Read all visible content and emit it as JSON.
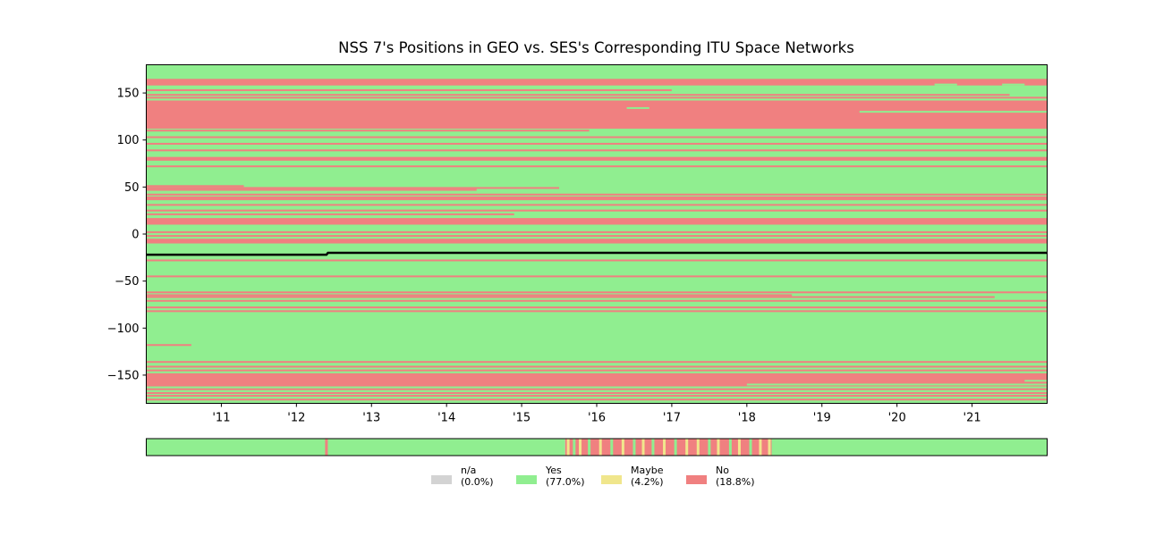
{
  "chart_data": {
    "type": "heatmap",
    "title": "NSS 7's Positions in GEO vs. SES's Corresponding ITU Space Networks",
    "xlabel": "",
    "ylabel": "",
    "xlim": [
      2010.0,
      2022.0
    ],
    "ylim": [
      -180,
      180
    ],
    "x_tick_values": [
      2011,
      2012,
      2013,
      2014,
      2015,
      2016,
      2017,
      2018,
      2019,
      2020,
      2021
    ],
    "x_tick_labels": [
      "'11",
      "'12",
      "'13",
      "'14",
      "'15",
      "'16",
      "'17",
      "'18",
      "'19",
      "'20",
      "'21"
    ],
    "y_tick_values": [
      150,
      100,
      50,
      0,
      -50,
      -100,
      -150
    ],
    "y_tick_labels": [
      "150",
      "100",
      "50",
      "0",
      "−50",
      "−100",
      "−150"
    ],
    "colors": {
      "na": "#d3d3d3",
      "yes": "#90ee90",
      "maybe": "#f0e68c",
      "no": "#f08080",
      "trace": "#000000"
    },
    "background_status": "yes",
    "no_bands": [
      {
        "lon_from": 158,
        "lon_to": 165
      },
      {
        "lon_from": 112,
        "lon_to": 142
      },
      {
        "lon_from": 78,
        "lon_to": 82
      },
      {
        "lon_from": 36,
        "lon_to": 40
      },
      {
        "lon_from": 10,
        "lon_to": 17
      },
      {
        "lon_from": -10,
        "lon_to": -5
      },
      {
        "lon_from": -162,
        "lon_to": -148
      }
    ],
    "no_lines": [
      {
        "lon": 153,
        "x_from": 2010.0,
        "x_to": 2017.0
      },
      {
        "lon": 148,
        "x_from": 2010.0,
        "x_to": 2021.5
      },
      {
        "lon": 145,
        "x_from": 2010.0,
        "x_to": 2022.0
      },
      {
        "lon": 136,
        "x_from": 2018.8,
        "x_to": 2022.0
      },
      {
        "lon": 110,
        "x_from": 2010.0,
        "x_to": 2015.9
      },
      {
        "lon": 103,
        "x_from": 2010.0,
        "x_to": 2022.0
      },
      {
        "lon": 96,
        "x_from": 2010.0,
        "x_to": 2022.0
      },
      {
        "lon": 89,
        "x_from": 2010.0,
        "x_to": 2022.0
      },
      {
        "lon": 72,
        "x_from": 2010.0,
        "x_to": 2022.0
      },
      {
        "lon": 51,
        "x_from": 2010.0,
        "x_to": 2011.3
      },
      {
        "lon": 49,
        "x_from": 2010.0,
        "x_to": 2015.5
      },
      {
        "lon": 47,
        "x_from": 2010.0,
        "x_to": 2014.4
      },
      {
        "lon": 42,
        "x_from": 2010.0,
        "x_to": 2022.0
      },
      {
        "lon": 31,
        "x_from": 2010.0,
        "x_to": 2022.0
      },
      {
        "lon": 25,
        "x_from": 2010.0,
        "x_to": 2022.0
      },
      {
        "lon": 21,
        "x_from": 2010.0,
        "x_to": 2014.9
      },
      {
        "lon": 2,
        "x_from": 2010.0,
        "x_to": 2022.0
      },
      {
        "lon": -2,
        "x_from": 2010.0,
        "x_to": 2022.0
      },
      {
        "lon": -28,
        "x_from": 2010.0,
        "x_to": 2022.0
      },
      {
        "lon": -45,
        "x_from": 2010.0,
        "x_to": 2022.0
      },
      {
        "lon": -62,
        "x_from": 2010.0,
        "x_to": 2022.0
      },
      {
        "lon": -65,
        "x_from": 2010.0,
        "x_to": 2018.6
      },
      {
        "lon": -67,
        "x_from": 2010.0,
        "x_to": 2021.3
      },
      {
        "lon": -71,
        "x_from": 2010.0,
        "x_to": 2022.0
      },
      {
        "lon": -78,
        "x_from": 2010.0,
        "x_to": 2022.0
      },
      {
        "lon": -82,
        "x_from": 2010.0,
        "x_to": 2022.0
      },
      {
        "lon": -118,
        "x_from": 2010.0,
        "x_to": 2010.6
      },
      {
        "lon": -136,
        "x_from": 2010.0,
        "x_to": 2022.0
      },
      {
        "lon": -141,
        "x_from": 2010.0,
        "x_to": 2022.0
      },
      {
        "lon": -145,
        "x_from": 2010.0,
        "x_to": 2022.0
      },
      {
        "lon": -165,
        "x_from": 2010.0,
        "x_to": 2022.0
      },
      {
        "lon": -169,
        "x_from": 2010.0,
        "x_to": 2022.0
      },
      {
        "lon": -172,
        "x_from": 2010.0,
        "x_to": 2022.0
      },
      {
        "lon": -176,
        "x_from": 2010.0,
        "x_to": 2022.0
      }
    ],
    "yes_patches": [
      {
        "lon": 159,
        "x_from": 2020.5,
        "x_to": 2020.8
      },
      {
        "lon": 159,
        "x_from": 2021.4,
        "x_to": 2021.7
      },
      {
        "lon": 153,
        "x_from": 2017.0,
        "x_to": 2022.0
      },
      {
        "lon": 134,
        "x_from": 2016.4,
        "x_to": 2016.7
      },
      {
        "lon": 130,
        "x_from": 2019.5,
        "x_to": 2022.0
      },
      {
        "lon": -160,
        "x_from": 2018.0,
        "x_to": 2022.0
      },
      {
        "lon": -156,
        "x_from": 2021.7,
        "x_to": 2022.0
      }
    ],
    "position_trace": [
      {
        "x": 2010.0,
        "lon": -22
      },
      {
        "x": 2012.4,
        "lon": -22
      },
      {
        "x": 2012.42,
        "lon": -20
      },
      {
        "x": 2022.0,
        "lon": -20
      }
    ],
    "summary_strip": {
      "segments": [
        {
          "x_from": 2010.0,
          "x_to": 2015.58,
          "status": "yes"
        },
        {
          "x_from": 2015.58,
          "x_to": 2018.33,
          "status": "no"
        },
        {
          "x_from": 2018.33,
          "x_to": 2022.0,
          "status": "yes"
        }
      ],
      "marks": [
        {
          "x": 2012.4,
          "status": "no"
        },
        {
          "x": 2015.62,
          "status": "maybe"
        },
        {
          "x": 2015.7,
          "status": "yes"
        },
        {
          "x": 2015.78,
          "status": "maybe"
        },
        {
          "x": 2015.9,
          "status": "yes"
        },
        {
          "x": 2016.05,
          "status": "maybe"
        },
        {
          "x": 2016.2,
          "status": "yes"
        },
        {
          "x": 2016.35,
          "status": "maybe"
        },
        {
          "x": 2016.5,
          "status": "yes"
        },
        {
          "x": 2016.62,
          "status": "maybe"
        },
        {
          "x": 2016.75,
          "status": "yes"
        },
        {
          "x": 2016.9,
          "status": "maybe"
        },
        {
          "x": 2017.05,
          "status": "yes"
        },
        {
          "x": 2017.2,
          "status": "maybe"
        },
        {
          "x": 2017.35,
          "status": "maybe"
        },
        {
          "x": 2017.5,
          "status": "yes"
        },
        {
          "x": 2017.62,
          "status": "maybe"
        },
        {
          "x": 2017.78,
          "status": "yes"
        },
        {
          "x": 2017.9,
          "status": "maybe"
        },
        {
          "x": 2018.05,
          "status": "yes"
        },
        {
          "x": 2018.18,
          "status": "maybe"
        },
        {
          "x": 2018.3,
          "status": "maybe"
        }
      ]
    },
    "legend": [
      {
        "key": "na",
        "label": "n/a",
        "pct": "(0.0%)"
      },
      {
        "key": "yes",
        "label": "Yes",
        "pct": "(77.0%)"
      },
      {
        "key": "maybe",
        "label": "Maybe",
        "pct": "(4.2%)"
      },
      {
        "key": "no",
        "label": "No",
        "pct": "(18.8%)"
      }
    ],
    "legend_placement": "bottom-center",
    "grid": false
  }
}
